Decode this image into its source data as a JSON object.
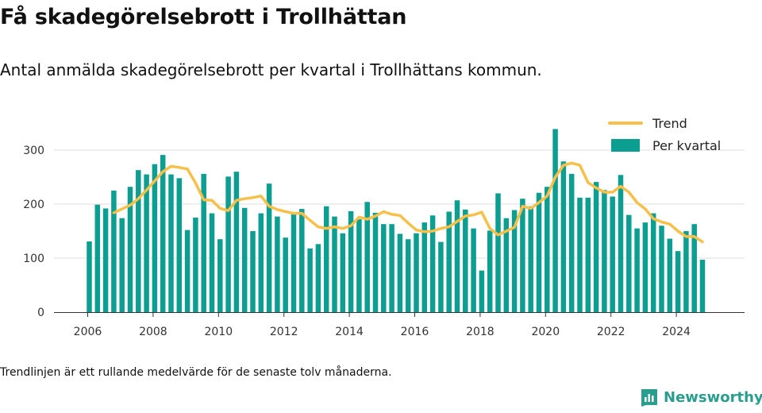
{
  "title": "Få skadegörelsebrott i Trollhättan",
  "subtitle": "Antal anmälda skadegörelsebrott per kvartal i Trollhättans kommun.",
  "footnote": "Trendlinjen är ett rullande medelvärde för de senaste tolv månaderna.",
  "brand": {
    "name": "Newsworthy",
    "icon": "newsworthy-logo-icon"
  },
  "colors": {
    "bar": "#0c9e91",
    "trend": "#f6c04a",
    "grid": "#dddddd",
    "axis": "#333333",
    "brand": "#2a9d8f"
  },
  "chart_data": {
    "type": "bar",
    "x_start": "2006 Q1",
    "x_ticks": [
      "2006",
      "2008",
      "2010",
      "2012",
      "2014",
      "2016",
      "2018",
      "2020",
      "2022",
      "2024"
    ],
    "y_ticks": [
      "0",
      "100",
      "200",
      "300"
    ],
    "ylim": [
      0,
      340
    ],
    "grid": true,
    "legend_position": "top-right",
    "series": [
      {
        "name": "Per kvartal",
        "type": "bar",
        "values": [
          131,
          199,
          192,
          225,
          174,
          232,
          263,
          255,
          274,
          291,
          255,
          248,
          152,
          175,
          256,
          183,
          135,
          251,
          260,
          193,
          150,
          183,
          238,
          177,
          138,
          181,
          191,
          118,
          126,
          196,
          177,
          146,
          187,
          172,
          204,
          184,
          163,
          163,
          145,
          135,
          146,
          166,
          179,
          130,
          186,
          207,
          190,
          155,
          77,
          151,
          220,
          174,
          189,
          210,
          196,
          221,
          232,
          339,
          279,
          256,
          212,
          212,
          241,
          226,
          214,
          254,
          180,
          155,
          166,
          183,
          160,
          136,
          113,
          150,
          163,
          97
        ]
      },
      {
        "name": "Trend",
        "type": "line",
        "values": [
          null,
          null,
          null,
          184,
          191,
          198,
          210,
          226,
          243,
          260,
          270,
          268,
          265,
          239,
          208,
          207,
          192,
          188,
          207,
          210,
          212,
          215,
          196,
          190,
          186,
          183,
          183,
          170,
          158,
          155,
          158,
          155,
          160,
          176,
          172,
          178,
          186,
          181,
          179,
          165,
          152,
          149,
          150,
          155,
          158,
          168,
          178,
          180,
          185,
          155,
          143,
          150,
          157,
          196,
          192,
          203,
          215,
          250,
          272,
          276,
          272,
          240,
          230,
          222,
          222,
          233,
          222,
          203,
          191,
          173,
          167,
          163,
          150,
          140,
          140,
          130
        ]
      }
    ]
  }
}
